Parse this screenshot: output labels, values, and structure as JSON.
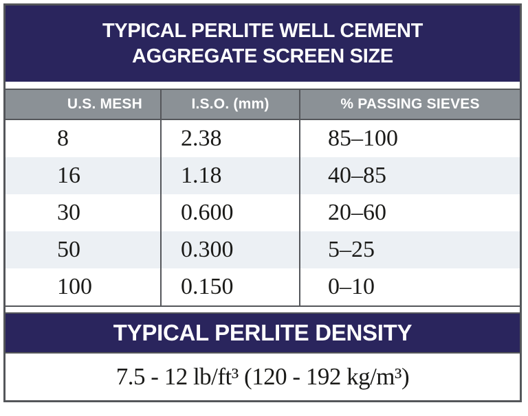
{
  "title": {
    "line1": "TYPICAL PERLITE WELL CEMENT",
    "line2": "AGGREGATE SCREEN SIZE"
  },
  "screen_table": {
    "headers": {
      "us_mesh": "U.S. MESH",
      "iso_mm": "I.S.O. (mm)",
      "passing": "% PASSING SIEVES"
    },
    "rows": [
      {
        "us_mesh": "8",
        "iso_mm": "2.38",
        "passing": "85–100"
      },
      {
        "us_mesh": "16",
        "iso_mm": "1.18",
        "passing": "40–85"
      },
      {
        "us_mesh": "30",
        "iso_mm": "0.600",
        "passing": "20–60"
      },
      {
        "us_mesh": "50",
        "iso_mm": "0.300",
        "passing": "5–25"
      },
      {
        "us_mesh": "100",
        "iso_mm": "0.150",
        "passing": "0–10"
      }
    ]
  },
  "density": {
    "title": "TYPICAL PERLITE DENSITY",
    "value": "7.5 - 12 lb/ft³ (120 - 192 kg/m³)"
  },
  "colors": {
    "navy": "#2a255d",
    "header_gray": "#8b9196",
    "border_gray": "#54565a",
    "row_alt": "#ecf0f4",
    "text_dark": "#1a1a18",
    "text_light": "#ffffff"
  }
}
